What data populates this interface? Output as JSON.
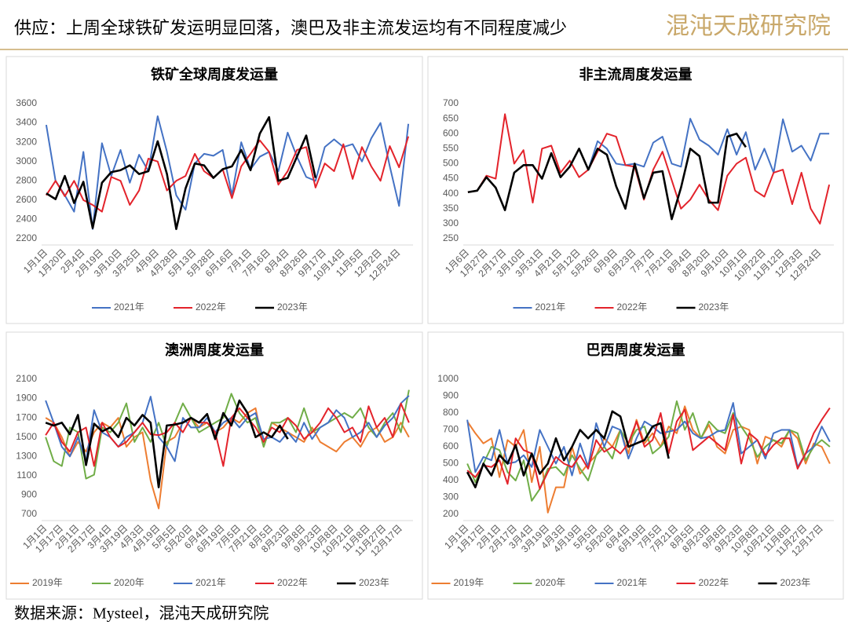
{
  "header": {
    "title": "供应：上周全球铁矿发运明显回落，澳巴及非主流发运均有不同程度减少",
    "logo": "混沌天成研究院"
  },
  "source": "数据来源：Mysteel，混沌天成研究院",
  "chart_data": [
    {
      "type": "line",
      "title": "铁矿全球周度发运量",
      "categories": [
        "1月1日",
        null,
        "1月20日",
        null,
        "2月4日",
        null,
        "2月19日",
        null,
        "3月10日",
        null,
        "3月25日",
        null,
        "4月9日",
        null,
        "4月28日",
        null,
        "5月13日",
        null,
        "5月28日",
        null,
        "6月16日",
        null,
        "7月1日",
        null,
        "7月16日",
        null,
        "8月4日",
        null,
        "8月26日",
        null,
        "9月17日",
        null,
        "10月14日",
        null,
        "11月5日",
        null,
        "12月2日",
        null,
        "12月24日",
        null
      ],
      "ylim": [
        2200,
        3600
      ],
      "yticks": [
        2200,
        2400,
        2600,
        2800,
        3000,
        3200,
        3400,
        3600
      ],
      "series": [
        {
          "name": "2021年",
          "color": "#4472c4",
          "values": [
            3380,
            2800,
            2650,
            2480,
            3100,
            2300,
            3190,
            2850,
            3120,
            2780,
            3070,
            2900,
            3470,
            3100,
            2650,
            2500,
            2980,
            3080,
            3060,
            3120,
            2650,
            3200,
            2920,
            3050,
            3100,
            2900,
            3300,
            3050,
            2840,
            2800,
            3150,
            3230,
            3150,
            3180,
            3000,
            3240,
            3400,
            2950,
            2540,
            3390
          ]
        },
        {
          "name": "2022年",
          "color": "#e3232b",
          "values": [
            2650,
            2800,
            2640,
            2800,
            2600,
            2550,
            2480,
            2840,
            2800,
            2550,
            2700,
            3030,
            3000,
            2700,
            2800,
            2850,
            3080,
            2900,
            2830,
            2920,
            2620,
            2950,
            3080,
            3220,
            3100,
            2760,
            2900,
            3120,
            3150,
            2730,
            2980,
            2900,
            3180,
            2820,
            3150,
            2950,
            2800,
            3160,
            2940,
            3260
          ]
        },
        {
          "name": "2023年",
          "color": "#000000",
          "values": [
            2670,
            2610,
            2850,
            2570,
            2790,
            2310,
            2780,
            2890,
            2910,
            2960,
            2870,
            2900,
            3210,
            2870,
            2300,
            2720,
            2980,
            2960,
            2830,
            2920,
            2950,
            3120,
            2910,
            3290,
            3460,
            2800,
            2830,
            3050,
            3270,
            2830,
            null,
            null,
            null,
            null,
            null,
            null,
            null,
            null,
            null,
            null
          ]
        }
      ]
    },
    {
      "type": "line",
      "title": "非主流周度发运量",
      "categories": [
        "1月6日",
        null,
        "1月27日",
        null,
        "2月17日",
        null,
        "3月10日",
        null,
        "3月31日",
        null,
        "4月21日",
        null,
        "5月12日",
        null,
        "5月26日",
        null,
        "6月9日",
        null,
        "6月23日",
        null,
        "7月7日",
        null,
        "7月21日",
        null,
        "8月4日",
        null,
        "8月20日",
        null,
        "9月10日",
        null,
        "10月1日",
        null,
        "10月22日",
        null,
        "11月12日",
        null,
        "12月3日",
        null,
        "12月24日",
        null
      ],
      "ylim": [
        250,
        700
      ],
      "yticks": [
        250,
        300,
        350,
        400,
        450,
        500,
        550,
        600,
        650,
        700
      ],
      "series": [
        {
          "name": "2021年",
          "color": "#4472c4",
          "values": [
            null,
            null,
            null,
            null,
            null,
            null,
            null,
            null,
            null,
            null,
            null,
            null,
            null,
            480,
            575,
            550,
            500,
            495,
            500,
            490,
            570,
            590,
            500,
            490,
            650,
            580,
            560,
            530,
            615,
            530,
            605,
            480,
            550,
            470,
            648,
            540,
            560,
            510,
            600,
            600
          ]
        },
        {
          "name": "2022年",
          "color": "#e3232b",
          "values": [
            405,
            410,
            460,
            450,
            665,
            500,
            545,
            370,
            550,
            560,
            470,
            510,
            455,
            480,
            540,
            600,
            590,
            495,
            490,
            380,
            480,
            540,
            445,
            350,
            380,
            430,
            380,
            345,
            460,
            500,
            520,
            410,
            390,
            470,
            480,
            365,
            470,
            350,
            300,
            430
          ]
        },
        {
          "name": "2023年",
          "color": "#000000",
          "values": [
            405,
            410,
            455,
            420,
            345,
            470,
            495,
            495,
            450,
            535,
            455,
            490,
            550,
            480,
            550,
            530,
            425,
            350,
            500,
            385,
            470,
            475,
            315,
            420,
            550,
            525,
            370,
            370,
            590,
            600,
            555,
            null,
            null,
            null,
            null,
            null,
            null,
            null,
            null,
            null
          ]
        }
      ]
    },
    {
      "type": "line",
      "title": "澳洲周度发运量",
      "categories": [
        "1月1日",
        null,
        "1月17日",
        null,
        "2月1日",
        null,
        "2月17日",
        null,
        "3月4日",
        null,
        "3月19日",
        null,
        "4月3日",
        null,
        "4月19日",
        null,
        "5月5日",
        null,
        "5月20日",
        null,
        "6月4日",
        null,
        "6月19日",
        null,
        "7月5日",
        null,
        "7月21日",
        null,
        "8月5日",
        null,
        "8月23日",
        null,
        "9月8日",
        null,
        "9月23日",
        null,
        "10月8日",
        null,
        "10月21日",
        null,
        "11月8日",
        null,
        "11月27日",
        null,
        "12月17日",
        null
      ],
      "ylim": [
        700,
        2100
      ],
      "yticks": [
        700,
        900,
        1100,
        1300,
        1500,
        1700,
        1900,
        2100
      ],
      "series": [
        {
          "name": "2019年",
          "color": "#ed7d31",
          "values": [
            1700,
            1650,
            1500,
            1300,
            1450,
            1350,
            1550,
            1650,
            1600,
            1700,
            1400,
            1500,
            1550,
            1050,
            760,
            1450,
            1500,
            1650,
            1700,
            1600,
            1650,
            1550,
            1600,
            1700,
            1650,
            1750,
            1800,
            1400,
            1650,
            1600,
            1550,
            1500,
            1450,
            1600,
            1450,
            1400,
            1350,
            1450,
            1500,
            1400,
            1550,
            1600,
            1450,
            1500,
            1650,
            1500
          ]
        },
        {
          "name": "2020年",
          "color": "#70ad47",
          "values": [
            1500,
            1250,
            1200,
            1600,
            1550,
            1070,
            1110,
            1600,
            1550,
            1650,
            1850,
            1450,
            1600,
            1450,
            1650,
            1400,
            1650,
            1850,
            1700,
            1550,
            1600,
            1650,
            1700,
            1950,
            1750,
            1650,
            1700,
            1400,
            1650,
            1650,
            1700,
            1550,
            1800,
            1550,
            1600,
            1650,
            1700,
            1750,
            1700,
            1800,
            1600,
            1500,
            1650,
            1750,
            1550,
            1990
          ]
        },
        {
          "name": "2021年",
          "color": "#4472c4",
          "values": [
            1880,
            1650,
            1400,
            1300,
            1500,
            1250,
            1780,
            1550,
            1500,
            1400,
            1500,
            1550,
            1650,
            1920,
            1500,
            1400,
            1250,
            1700,
            1600,
            1600,
            1700,
            1550,
            1650,
            1700,
            1600,
            1700,
            1750,
            1480,
            1500,
            1450,
            1550,
            1450,
            1650,
            1480,
            1600,
            1650,
            1780,
            1700,
            1500,
            1550,
            1650,
            1500,
            1620,
            1700,
            1850,
            1930
          ]
        },
        {
          "name": "2022年",
          "color": "#e3232b",
          "values": [
            1520,
            1650,
            1450,
            1350,
            1550,
            1600,
            1200,
            1650,
            1500,
            1400,
            1450,
            1550,
            1650,
            1530,
            1520,
            1550,
            1650,
            1550,
            1700,
            1650,
            1650,
            1550,
            1200,
            1700,
            1800,
            1700,
            1600,
            1450,
            1600,
            1550,
            1700,
            1620,
            1480,
            1550,
            1650,
            1800,
            1700,
            1550,
            1600,
            1450,
            1820,
            1600,
            1700,
            1500,
            1850,
            1650
          ]
        },
        {
          "name": "2023年",
          "color": "#000000",
          "values": [
            1650,
            1620,
            1650,
            1530,
            1730,
            1210,
            1640,
            1560,
            1600,
            1500,
            1700,
            1620,
            1730,
            1650,
            980,
            1620,
            1630,
            1650,
            1700,
            1650,
            1740,
            1480,
            1750,
            1620,
            1880,
            1750,
            1500,
            1550,
            1500,
            1620,
            1480,
            null,
            null,
            null,
            null,
            null,
            null,
            null,
            null,
            null,
            null,
            null,
            null,
            null,
            null,
            null
          ]
        }
      ]
    },
    {
      "type": "line",
      "title": "巴西周度发运量",
      "categories": [
        "1月1日",
        null,
        "1月17日",
        null,
        "2月1日",
        null,
        "2月17日",
        null,
        "3月4日",
        null,
        "3月19日",
        null,
        "4月3日",
        null,
        "4月19日",
        null,
        "5月5日",
        null,
        "5月20日",
        null,
        "6月4日",
        null,
        "6月19日",
        null,
        "7月5日",
        null,
        "7月21日",
        null,
        "8月5日",
        null,
        "8月23日",
        null,
        "9月8日",
        null,
        "9月23日",
        null,
        "10月8日",
        null,
        "10月21日",
        null,
        "11月8日",
        null,
        "11月27日",
        null,
        "12月17日",
        null
      ],
      "ylim": [
        200,
        1000
      ],
      "yticks": [
        200,
        300,
        400,
        500,
        600,
        700,
        800,
        900,
        1000
      ],
      "series": [
        {
          "name": "2019年",
          "color": "#ed7d31",
          "values": [
            750,
            680,
            620,
            650,
            420,
            640,
            600,
            700,
            390,
            600,
            210,
            360,
            360,
            600,
            440,
            500,
            550,
            650,
            600,
            700,
            560,
            760,
            620,
            680,
            600,
            720,
            680,
            840,
            700,
            650,
            730,
            600,
            560,
            700,
            720,
            700,
            500,
            660,
            640,
            600,
            700,
            650,
            500,
            620,
            600,
            500
          ]
        },
        {
          "name": "2020年",
          "color": "#70ad47",
          "values": [
            500,
            390,
            500,
            600,
            580,
            450,
            400,
            520,
            280,
            350,
            470,
            480,
            430,
            550,
            470,
            400,
            550,
            600,
            530,
            700,
            620,
            700,
            720,
            560,
            600,
            660,
            870,
            700,
            800,
            650,
            750,
            700,
            680,
            800,
            720,
            650,
            540,
            600,
            640,
            620,
            700,
            680,
            520,
            600,
            640,
            600
          ]
        },
        {
          "name": "2021年",
          "color": "#4472c4",
          "values": [
            760,
            450,
            540,
            520,
            700,
            500,
            510,
            550,
            480,
            700,
            600,
            500,
            600,
            430,
            620,
            480,
            740,
            600,
            720,
            700,
            530,
            650,
            750,
            720,
            680,
            690,
            700,
            750,
            680,
            650,
            660,
            690,
            700,
            860,
            560,
            600,
            640,
            530,
            680,
            700,
            700,
            480,
            560,
            600,
            720,
            630
          ]
        },
        {
          "name": "2022年",
          "color": "#e3232b",
          "values": [
            460,
            420,
            490,
            480,
            520,
            380,
            650,
            580,
            560,
            350,
            450,
            540,
            500,
            480,
            550,
            470,
            640,
            570,
            600,
            560,
            620,
            750,
            600,
            640,
            800,
            560,
            750,
            820,
            580,
            620,
            660,
            620,
            580,
            790,
            500,
            680,
            640,
            550,
            610,
            650,
            650,
            470,
            560,
            680,
            760,
            830
          ]
        },
        {
          "name": "2023年",
          "color": "#000000",
          "values": [
            450,
            360,
            500,
            430,
            550,
            500,
            610,
            430,
            560,
            440,
            500,
            650,
            520,
            600,
            700,
            650,
            700,
            650,
            810,
            780,
            600,
            620,
            640,
            720,
            740,
            530,
            null,
            null,
            null,
            null,
            null,
            null,
            null,
            null,
            null,
            null,
            null,
            null,
            null,
            null,
            null,
            null,
            null,
            null,
            null,
            null
          ]
        }
      ]
    }
  ]
}
